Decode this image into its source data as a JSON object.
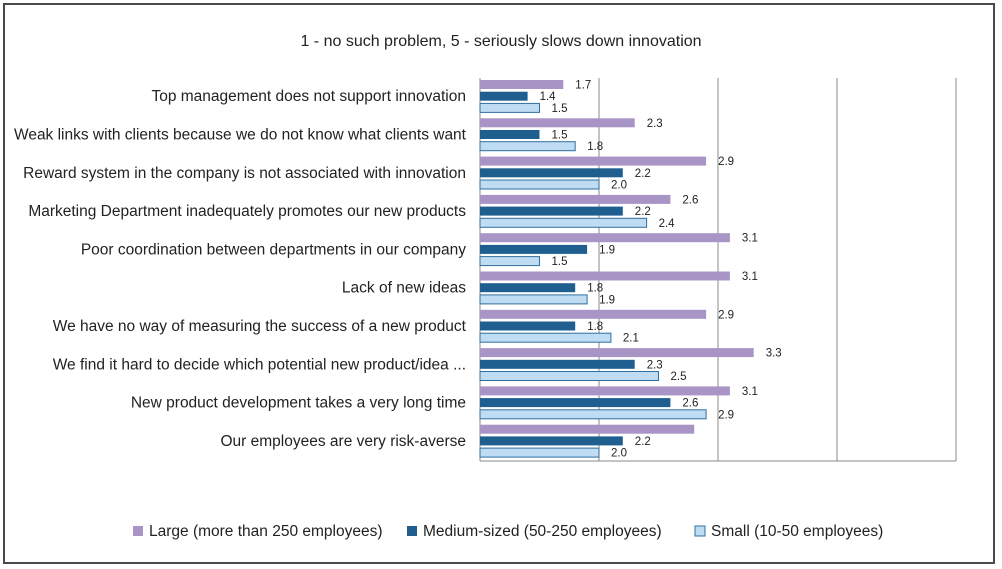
{
  "chart_data": {
    "type": "bar",
    "orientation": "horizontal",
    "title": "1 - no such problem, 5 - seriously slows down innovation",
    "categories": [
      "Top management does not support innovation",
      "Weak links with clients because we do not know what clients want",
      "Reward system in the company is not associated with innovation",
      "Marketing Department inadequately promotes our new products",
      "Poor coordination between departments in our company",
      "Lack of new ideas",
      "We have no way of measuring the success of a new product",
      "We find it hard to decide which potential new product/idea ...",
      "New product development takes a very long time",
      "Our employees are very risk-averse"
    ],
    "series": [
      {
        "name": "Large (more than 250 employees)",
        "color": "#a895c6",
        "values": [
          1.7,
          2.3,
          2.9,
          2.6,
          3.1,
          3.1,
          2.9,
          3.3,
          3.1,
          2.8
        ],
        "labels": [
          "1.7",
          "2.3",
          "2.9",
          "2.6",
          "3.1",
          "3.1",
          "2.9",
          "3.3",
          "3.1",
          ""
        ]
      },
      {
        "name": "Medium-sized (50-250 employees)",
        "color": "#1f5f8f",
        "values": [
          1.4,
          1.5,
          2.2,
          2.2,
          1.9,
          1.8,
          1.8,
          2.3,
          2.6,
          2.2
        ],
        "labels": [
          "1.4",
          "1.5",
          "2.2",
          "2.2",
          "1.9",
          "1.8",
          "1.8",
          "2.3",
          "2.6",
          "2.2"
        ]
      },
      {
        "name": "Small (10-50 employees)",
        "color": "#bfdcf2",
        "values": [
          1.5,
          1.8,
          2.0,
          2.4,
          1.5,
          1.9,
          2.1,
          2.5,
          2.9,
          2.0
        ],
        "labels": [
          "1.5",
          "1.8",
          "2.0",
          "2.4",
          "1.5",
          "1.9",
          "2.1",
          "2.5",
          "2.9",
          "2.0"
        ]
      }
    ],
    "xlim": [
      1,
      5
    ],
    "grid": true,
    "legend_position": "bottom"
  }
}
